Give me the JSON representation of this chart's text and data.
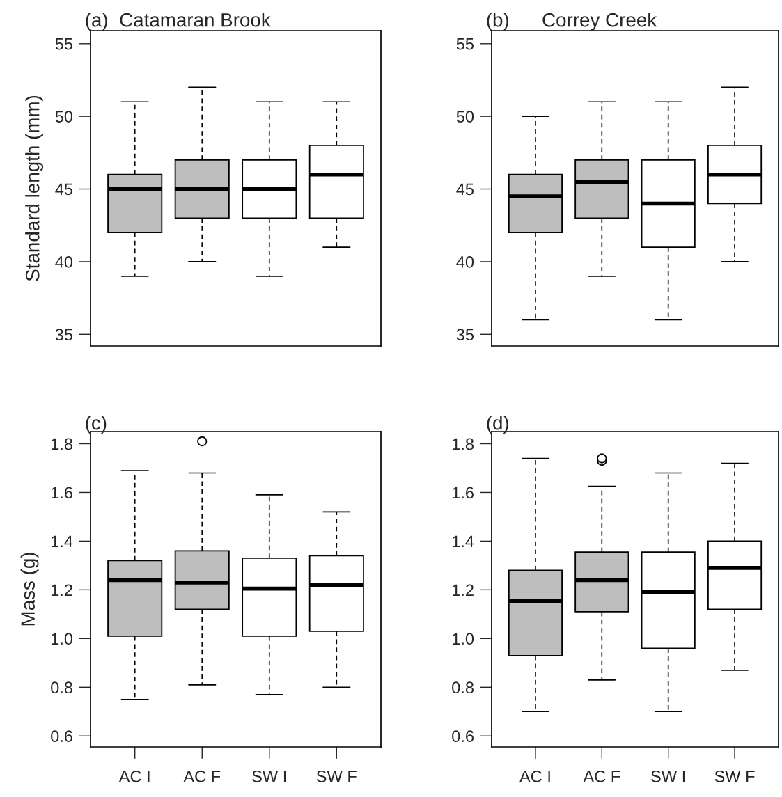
{
  "chart_data": [
    {
      "type": "box",
      "title": "(a)  Catamaran Brook",
      "ylabel": "Standard length (mm)",
      "categories": [
        null,
        null,
        null,
        null
      ],
      "colors": [
        "#bebebe",
        "#bebebe",
        "#ffffff",
        "#ffffff"
      ],
      "tick_labels": "y",
      "ylim": [
        34.2,
        55.9
      ],
      "yticks": [
        35,
        40,
        45,
        50,
        55
      ],
      "boxes": [
        {
          "low": 39,
          "q1": 42,
          "median": 45,
          "q3": 46,
          "high": 51
        },
        {
          "low": 40,
          "q1": 43,
          "median": 45,
          "q3": 47,
          "high": 52
        },
        {
          "low": 39,
          "q1": 43,
          "median": 45,
          "q3": 47,
          "high": 51
        },
        {
          "low": 41,
          "q1": 43,
          "median": 46,
          "q3": 48,
          "high": 51
        }
      ]
    },
    {
      "type": "box",
      "title": "(b)      Correy Creek",
      "categories": [
        null,
        null,
        null,
        null
      ],
      "colors": [
        "#bebebe",
        "#bebebe",
        "#ffffff",
        "#ffffff"
      ],
      "tick_labels": "y",
      "ylim": [
        34.2,
        55.9
      ],
      "yticks": [
        35,
        40,
        45,
        50,
        55
      ],
      "boxes": [
        {
          "low": 36,
          "q1": 42,
          "median": 44.5,
          "q3": 46,
          "high": 50
        },
        {
          "low": 39,
          "q1": 43,
          "median": 45.5,
          "q3": 47,
          "high": 51
        },
        {
          "low": 36,
          "q1": 41,
          "median": 44,
          "q3": 47,
          "high": 51
        },
        {
          "low": 40,
          "q1": 44,
          "median": 46,
          "q3": 48,
          "high": 52
        }
      ]
    },
    {
      "type": "box",
      "title": "(c)",
      "ylabel": "Mass (g)",
      "categories": [
        "AC I",
        "AC F",
        "SW I",
        "SW F"
      ],
      "colors": [
        "#bebebe",
        "#bebebe",
        "#ffffff",
        "#ffffff"
      ],
      "ylim": [
        0.555,
        1.85
      ],
      "yticks": [
        {
          "value": 0.6,
          "label": "0.6"
        },
        {
          "value": 0.8,
          "label": "0.8"
        },
        {
          "value": 1.0,
          "label": "1.0"
        },
        {
          "value": 1.2,
          "label": "1.2"
        },
        {
          "value": 1.4,
          "label": "1.4"
        },
        {
          "value": 1.6,
          "label": "1.6"
        },
        {
          "value": 1.8,
          "label": "1.8"
        }
      ],
      "boxes": [
        {
          "low": 0.75,
          "q1": 1.01,
          "median": 1.24,
          "q3": 1.32,
          "high": 1.69
        },
        {
          "low": 0.81,
          "q1": 1.12,
          "median": 1.23,
          "q3": 1.36,
          "high": 1.68,
          "outliers": [
            1.81
          ]
        },
        {
          "low": 0.77,
          "q1": 1.01,
          "median": 1.205,
          "q3": 1.33,
          "high": 1.59
        },
        {
          "low": 0.8,
          "q1": 1.03,
          "median": 1.22,
          "q3": 1.34,
          "high": 1.52
        }
      ]
    },
    {
      "type": "box",
      "title": "(d)",
      "categories": [
        "AC I",
        "AC F",
        "SW I",
        "SW F"
      ],
      "colors": [
        "#bebebe",
        "#bebebe",
        "#ffffff",
        "#ffffff"
      ],
      "ylim": [
        0.555,
        1.85
      ],
      "yticks": [
        {
          "value": 0.6,
          "label": "0.6"
        },
        {
          "value": 0.8,
          "label": "0.8"
        },
        {
          "value": 1.0,
          "label": "1.0"
        },
        {
          "value": 1.2,
          "label": "1.2"
        },
        {
          "value": 1.4,
          "label": "1.4"
        },
        {
          "value": 1.6,
          "label": "1.6"
        },
        {
          "value": 1.8,
          "label": "1.8"
        }
      ],
      "boxes": [
        {
          "low": 0.7,
          "q1": 0.93,
          "median": 1.155,
          "q3": 1.28,
          "high": 1.74
        },
        {
          "low": 0.83,
          "q1": 1.11,
          "median": 1.24,
          "q3": 1.355,
          "high": 1.625,
          "outliers": [
            1.73,
            1.74
          ]
        },
        {
          "low": 0.7,
          "q1": 0.96,
          "median": 1.19,
          "q3": 1.355,
          "high": 1.68
        },
        {
          "low": 0.87,
          "q1": 1.12,
          "median": 1.29,
          "q3": 1.4,
          "high": 1.72
        }
      ]
    }
  ]
}
